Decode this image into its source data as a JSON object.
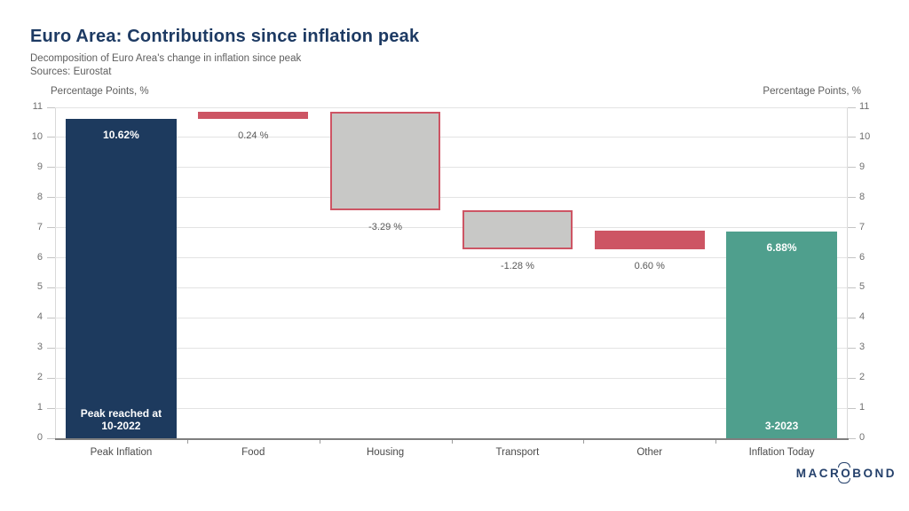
{
  "branding": {
    "logo_pre": "MACR",
    "logo_o": "O",
    "logo_post": "BOND"
  },
  "colors": {
    "navy": "#1d3a5e",
    "red": "#cd5564",
    "gray_fill": "#c8c8c6",
    "teal": "#4f9f8d",
    "title_text": "#1d3a63",
    "muted_text": "#5e5e5e",
    "tick_text": "#6f6f6f",
    "category_text": "#4b4b4b",
    "value_text": "#585858",
    "grid_line": "#e3e3e3",
    "axis_line": "#7e7e7e",
    "side_axis_line": "#d9d9d9",
    "tick_mark": "#c4c4c4",
    "boundary_tick": "#9c9c9c",
    "inside_label_text": "#ffffff"
  },
  "chart_data": {
    "type": "waterfall",
    "title": "Euro Area: Contributions since inflation peak",
    "subtitle": "Decomposition of Euro Area's change in inflation since peak",
    "sources": "Sources: Eurostat",
    "ylabel_left": "Percentage Points, %",
    "ylabel_right": "Percentage Points, %",
    "ylim": [
      0,
      11
    ],
    "ytick_step": 1,
    "grid": true,
    "legend": "none",
    "categories": [
      "Peak Inflation",
      "Food",
      "Housing",
      "Transport",
      "Other",
      "Inflation Today"
    ],
    "bars": [
      {
        "category": "Peak Inflation",
        "value": 10.62,
        "from": 0,
        "to": 10.62,
        "kind": "total-start",
        "label": "10.62%",
        "label_pos": "inside-top",
        "annotation": [
          "Peak reached at",
          "10-2022"
        ]
      },
      {
        "category": "Food",
        "value": 0.24,
        "from": 10.62,
        "to": 10.86,
        "kind": "increase",
        "label": "0.24 %",
        "label_pos": "below"
      },
      {
        "category": "Housing",
        "value": -3.29,
        "from": 10.86,
        "to": 7.57,
        "kind": "decrease",
        "label": "-3.29 %",
        "label_pos": "below"
      },
      {
        "category": "Transport",
        "value": -1.28,
        "from": 7.57,
        "to": 6.29,
        "kind": "decrease",
        "label": "-1.28 %",
        "label_pos": "below"
      },
      {
        "category": "Other",
        "value": 0.6,
        "from": 6.29,
        "to": 6.89,
        "kind": "increase",
        "label": "0.60 %",
        "label_pos": "below"
      },
      {
        "category": "Inflation Today",
        "value": 6.88,
        "from": 0,
        "to": 6.88,
        "kind": "total-end",
        "label": "6.88%",
        "label_pos": "inside-top",
        "annotation": [
          "3-2023"
        ]
      }
    ]
  }
}
